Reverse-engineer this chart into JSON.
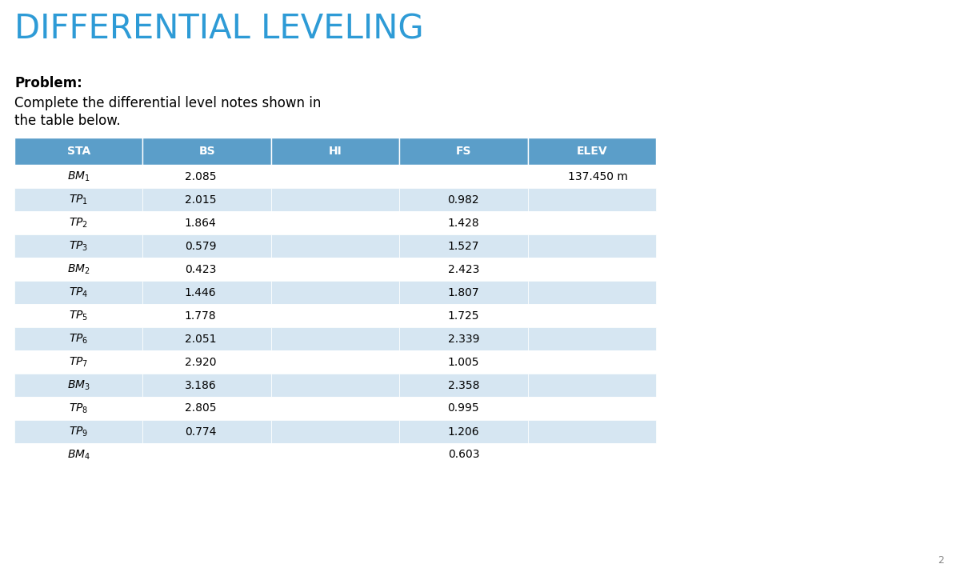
{
  "title": "DIFFERENTIAL LEVELING",
  "problem_label": "Problem:",
  "problem_text_line1": "Complete the differential level notes shown in",
  "problem_text_line2": "the table below.",
  "title_color": "#2E9BD6",
  "background_color": "#FFFFFF",
  "header_bg_color": "#5B9EC9",
  "header_text_color": "#FFFFFF",
  "row_colors": [
    "#FFFFFF",
    "#D6E6F2"
  ],
  "col_headers": [
    "STA",
    "BS",
    "HI",
    "FS",
    "ELEV"
  ],
  "rows": [
    {
      "sta": "$BM_1$",
      "bs": "2.085",
      "hi": "",
      "fs": "",
      "elev": "137.450 m"
    },
    {
      "sta": "$TP_1$",
      "bs": "2.015",
      "hi": "",
      "fs": "0.982",
      "elev": ""
    },
    {
      "sta": "$TP_2$",
      "bs": "1.864",
      "hi": "",
      "fs": "1.428",
      "elev": ""
    },
    {
      "sta": "$TP_3$",
      "bs": "0.579",
      "hi": "",
      "fs": "1.527",
      "elev": ""
    },
    {
      "sta": "$BM_2$",
      "bs": "0.423",
      "hi": "",
      "fs": "2.423",
      "elev": ""
    },
    {
      "sta": "$TP_4$",
      "bs": "1.446",
      "hi": "",
      "fs": "1.807",
      "elev": ""
    },
    {
      "sta": "$TP_5$",
      "bs": "1.778",
      "hi": "",
      "fs": "1.725",
      "elev": ""
    },
    {
      "sta": "$TP_6$",
      "bs": "2.051",
      "hi": "",
      "fs": "2.339",
      "elev": ""
    },
    {
      "sta": "$TP_7$",
      "bs": "2.920",
      "hi": "",
      "fs": "1.005",
      "elev": ""
    },
    {
      "sta": "$BM_3$",
      "bs": "3.186",
      "hi": "",
      "fs": "2.358",
      "elev": ""
    },
    {
      "sta": "$TP_8$",
      "bs": "2.805",
      "hi": "",
      "fs": "0.995",
      "elev": ""
    },
    {
      "sta": "$TP_9$",
      "bs": "0.774",
      "hi": "",
      "fs": "1.206",
      "elev": ""
    },
    {
      "sta": "$BM_4$",
      "bs": "",
      "hi": "",
      "fs": "0.603",
      "elev": ""
    }
  ],
  "page_number": "2",
  "title_fontsize": 30,
  "header_fontsize": 10,
  "body_fontsize": 10,
  "problem_fontsize": 12
}
